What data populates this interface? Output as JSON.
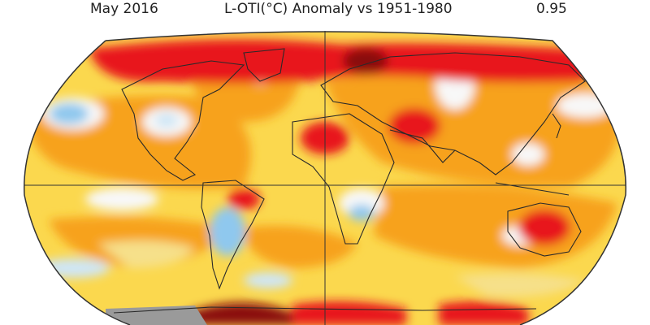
{
  "header": {
    "date": "May 2016",
    "title": "L-OTI(°C) Anomaly vs 1951-1980",
    "global_value": "0.95"
  },
  "map": {
    "projection": "robinson",
    "colors": {
      "ocean_mild": "#f6e08a",
      "yellow": "#fbd84e",
      "orange": "#f7a21e",
      "orange_dark": "#ef7a10",
      "red": "#e8121a",
      "dark_red": "#8a0e0c",
      "white": "#f8f8f8",
      "light_blue": "#cfe6f6",
      "blue": "#8fc8ee",
      "no_data_gray": "#9a9a9a",
      "coast": "#2a2a2a"
    }
  }
}
